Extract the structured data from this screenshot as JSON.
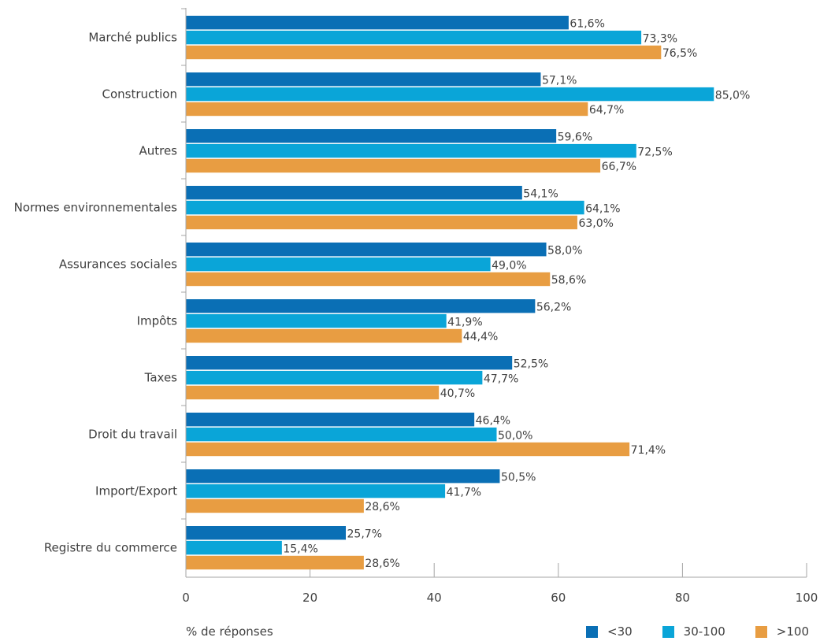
{
  "chart_data": {
    "type": "bar",
    "orientation": "horizontal",
    "categories": [
      "Marché publics",
      "Construction",
      "Autres",
      "Normes environnementales",
      "Assurances sociales",
      "Impôts",
      "Taxes",
      "Droit du travail",
      "Import/Export",
      "Registre du commerce"
    ],
    "series": [
      {
        "name": "<30",
        "color": "#0a6fb5",
        "values": [
          61.6,
          57.1,
          59.6,
          54.1,
          58.0,
          56.2,
          52.5,
          46.4,
          50.5,
          25.7
        ],
        "labels": [
          "61,6%",
          "57,1%",
          "59,6%",
          "54,1%",
          "58,0%",
          "56,2%",
          "52,5%",
          "46,4%",
          "50,5%",
          "25,7%"
        ]
      },
      {
        "name": "30-100",
        "color": "#0aa5d8",
        "values": [
          73.3,
          85.0,
          72.5,
          64.1,
          49.0,
          41.9,
          47.7,
          50.0,
          41.7,
          15.4
        ],
        "labels": [
          "73,3%",
          "85,0%",
          "72,5%",
          "64,1%",
          "49,0%",
          "41,9%",
          "47,7%",
          "50,0%",
          "41,7%",
          "15,4%"
        ]
      },
      {
        "name": ">100",
        "color": "#e89d42",
        "values": [
          76.5,
          64.7,
          66.7,
          63.0,
          58.6,
          44.4,
          40.7,
          71.4,
          28.6,
          28.6
        ],
        "labels": [
          "76,5%",
          "64,7%",
          "66,7%",
          "63,0%",
          "58,6%",
          "44,4%",
          "40,7%",
          "71,4%",
          "28,6%",
          "28,6%"
        ]
      }
    ],
    "xlim": [
      0,
      100
    ],
    "xticks": [
      "0",
      "20",
      "40",
      "60",
      "80",
      "100"
    ],
    "xlabel": "% de réponses",
    "ylabel": "",
    "title": "",
    "grid": false,
    "legend_position": "bottom-right"
  }
}
